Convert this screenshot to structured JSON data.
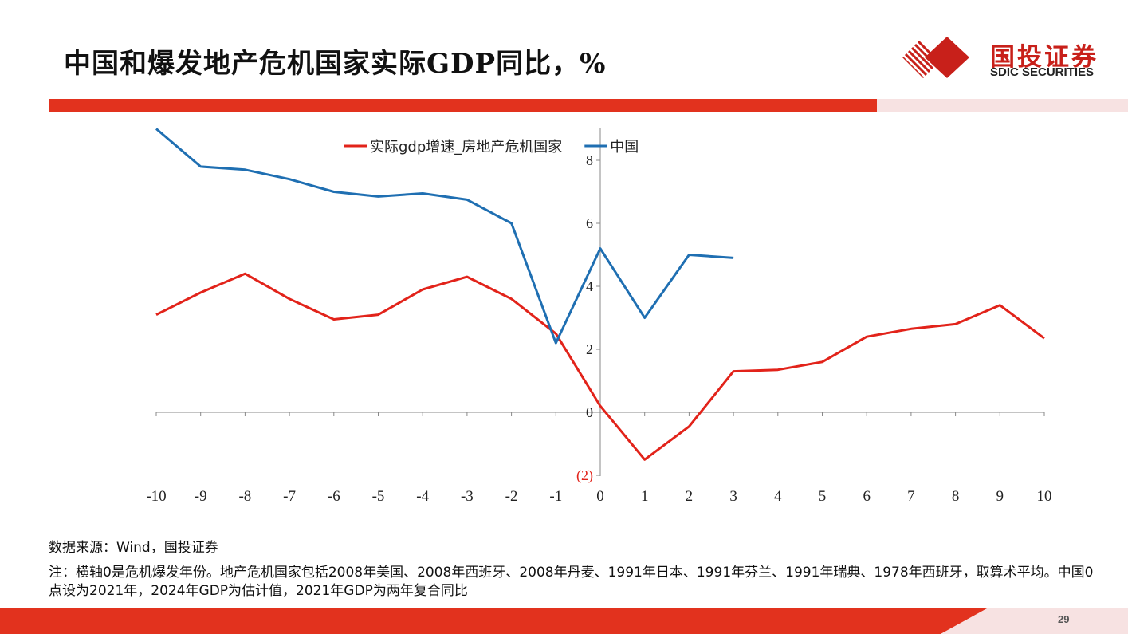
{
  "header": {
    "title": "中国和爆发地产危机国家实际GDP同比，%",
    "logo_cn": "国投证券",
    "logo_en": "SDIC SECURITIES",
    "brand_color": "#e2321e"
  },
  "chart_data": {
    "type": "line",
    "title": "",
    "xlabel": "",
    "ylabel": "",
    "x": [
      -10,
      -9,
      -8,
      -7,
      -6,
      -5,
      -4,
      -3,
      -2,
      -1,
      0,
      1,
      2,
      3,
      4,
      5,
      6,
      7,
      8,
      9,
      10
    ],
    "x_tick_labels": [
      "-10",
      "-9",
      "-8",
      "-7",
      "-6",
      "-5",
      "-4",
      "-3",
      "-2",
      "-1",
      "0",
      "1",
      "2",
      "3",
      "4",
      "5",
      "6",
      "7",
      "8",
      "9",
      "10"
    ],
    "y_tick_labels": [
      "(2)",
      "0",
      "2",
      "4",
      "6",
      "8"
    ],
    "y_ticks": [
      -2,
      0,
      2,
      4,
      6,
      8
    ],
    "ylim": [
      -2,
      9
    ],
    "xlim": [
      -10,
      10
    ],
    "legend_position": "top-center",
    "grid": false,
    "series": [
      {
        "name": "实际gdp增速_房地产危机国家",
        "color": "#e2231a",
        "values": [
          3.1,
          3.8,
          4.4,
          3.6,
          2.95,
          3.1,
          3.9,
          4.3,
          3.6,
          2.5,
          0.2,
          -1.5,
          -0.45,
          1.3,
          1.35,
          1.6,
          2.4,
          2.65,
          2.8,
          3.4,
          2.35
        ]
      },
      {
        "name": "中国",
        "color": "#1f6fb2",
        "values": [
          9.0,
          7.8,
          7.7,
          7.4,
          7.0,
          6.85,
          6.95,
          6.75,
          6.0,
          2.2,
          5.2,
          3.0,
          5.0,
          4.9,
          null,
          null,
          null,
          null,
          null,
          null,
          null
        ]
      }
    ]
  },
  "footer": {
    "source": "数据来源：Wind，国投证券",
    "note": "注：横轴0是危机爆发年份。地产危机国家包括2008年美国、2008年西班牙、2008年丹麦、1991年日本、1991年芬兰、1991年瑞典、1978年西班牙，取算术平均。中国0点设为2021年，2024年GDP为估计值，2021年GDP为两年复合同比",
    "page_number": "29"
  }
}
